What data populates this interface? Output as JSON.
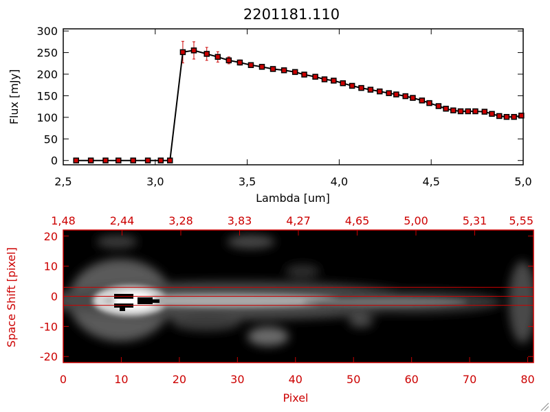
{
  "chart_data": [
    {
      "type": "line",
      "title": "2201181.110",
      "xlabel": "Lambda [um]",
      "ylabel": "Flux [mJy]",
      "xlim": [
        2.5,
        5.0
      ],
      "ylim": [
        -10,
        305
      ],
      "x_ticks": [
        "2,5",
        "3,0",
        "3,5",
        "4,0",
        "4,5",
        "5,0"
      ],
      "y_ticks": [
        "0",
        "50",
        "100",
        "150",
        "200",
        "250",
        "300"
      ],
      "grid": false,
      "legend": "none",
      "colors": {
        "line": "#000000",
        "marker": "#cc0000",
        "errorbar": "#cc0000"
      },
      "series": [
        {
          "x": [
            2.57,
            2.65,
            2.73,
            2.8,
            2.88,
            2.96,
            3.03,
            3.08,
            3.15,
            3.21,
            3.28,
            3.34,
            3.4,
            3.46,
            3.52,
            3.58,
            3.64,
            3.7,
            3.76,
            3.81,
            3.87,
            3.92,
            3.97,
            4.02,
            4.07,
            4.12,
            4.17,
            4.22,
            4.27,
            4.31,
            4.36,
            4.4,
            4.45,
            4.49,
            4.54,
            4.58,
            4.62,
            4.66,
            4.7,
            4.74,
            4.79,
            4.83,
            4.87,
            4.91,
            4.95,
            4.99
          ],
          "y": [
            0,
            0,
            0,
            0,
            0,
            0,
            0,
            0,
            251,
            255,
            247,
            240,
            232,
            227,
            221,
            217,
            212,
            209,
            205,
            199,
            194,
            188,
            185,
            179,
            173,
            168,
            164,
            160,
            156,
            153,
            149,
            145,
            139,
            133,
            126,
            120,
            116,
            114,
            114,
            114,
            113,
            108,
            103,
            101,
            101,
            104
          ],
          "yerr": [
            0,
            0,
            0,
            0,
            0,
            0,
            0,
            0,
            25,
            20,
            15,
            12,
            8,
            6,
            5,
            5,
            4,
            4,
            4,
            4,
            4,
            4,
            4,
            4,
            4,
            4,
            4,
            4,
            4,
            4,
            4,
            4,
            4,
            4,
            4,
            4,
            4,
            4,
            4,
            4,
            4,
            4,
            4,
            4,
            4,
            4
          ]
        }
      ]
    },
    {
      "type": "heatmap",
      "xlabel": "Pixel",
      "ylabel": "Space Shift [pixel]",
      "top_axis_ticks": [
        "1,48",
        "2,44",
        "3,28",
        "3,83",
        "4,27",
        "4,65",
        "5,00",
        "5,31",
        "5,55"
      ],
      "x_ticks": [
        "0",
        "10",
        "20",
        "30",
        "40",
        "50",
        "60",
        "70",
        "80"
      ],
      "y_ticks": [
        "20",
        "10",
        "0",
        "-10",
        "-20"
      ],
      "xlim": [
        0,
        81
      ],
      "ylim": [
        -22,
        22
      ],
      "colormap": "grayscale",
      "axis_color": "#cc0000",
      "extraction_lines": [
        3,
        0,
        -3
      ]
    }
  ]
}
